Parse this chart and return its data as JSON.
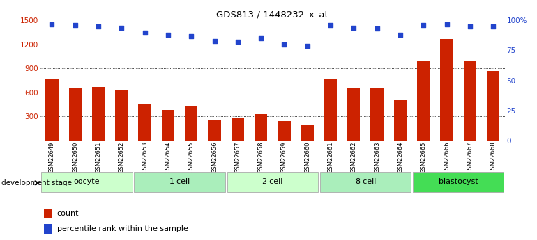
{
  "title": "GDS813 / 1448232_x_at",
  "samples": [
    "GSM22649",
    "GSM22650",
    "GSM22651",
    "GSM22652",
    "GSM22653",
    "GSM22654",
    "GSM22655",
    "GSM22656",
    "GSM22657",
    "GSM22658",
    "GSM22659",
    "GSM22660",
    "GSM22661",
    "GSM22662",
    "GSM22663",
    "GSM22664",
    "GSM22665",
    "GSM22666",
    "GSM22667",
    "GSM22668"
  ],
  "counts": [
    770,
    650,
    670,
    630,
    460,
    380,
    430,
    250,
    280,
    330,
    240,
    200,
    770,
    650,
    660,
    500,
    1000,
    1270,
    1000,
    870
  ],
  "percentiles": [
    97,
    96,
    95,
    94,
    90,
    88,
    87,
    83,
    82,
    85,
    80,
    79,
    96,
    94,
    93,
    88,
    96,
    97,
    95,
    95
  ],
  "ylim_left": [
    0,
    1500
  ],
  "ylim_right": [
    0,
    100
  ],
  "yticks_left": [
    300,
    600,
    900,
    1200,
    1500
  ],
  "yticks_right": [
    0,
    25,
    50,
    75,
    100
  ],
  "ytick_right_labels": [
    "0",
    "25",
    "50",
    "75",
    "100%"
  ],
  "groups": [
    {
      "label": "oocyte",
      "start": 0,
      "end": 4,
      "color": "#ccffcc"
    },
    {
      "label": "1-cell",
      "start": 4,
      "end": 8,
      "color": "#aaeebb"
    },
    {
      "label": "2-cell",
      "start": 8,
      "end": 12,
      "color": "#ccffcc"
    },
    {
      "label": "8-cell",
      "start": 12,
      "end": 16,
      "color": "#aaeebb"
    },
    {
      "label": "blastocyst",
      "start": 16,
      "end": 20,
      "color": "#44dd55"
    }
  ],
  "bar_color": "#cc2200",
  "dot_color": "#2244cc",
  "bar_width": 0.55,
  "bg_color": "#ffffff",
  "grid_color": "#000000",
  "tick_color_left": "#cc2200",
  "tick_color_right": "#2244cc",
  "legend_count_label": "count",
  "legend_pct_label": "percentile rank within the sample",
  "dev_stage_label": "development stage"
}
